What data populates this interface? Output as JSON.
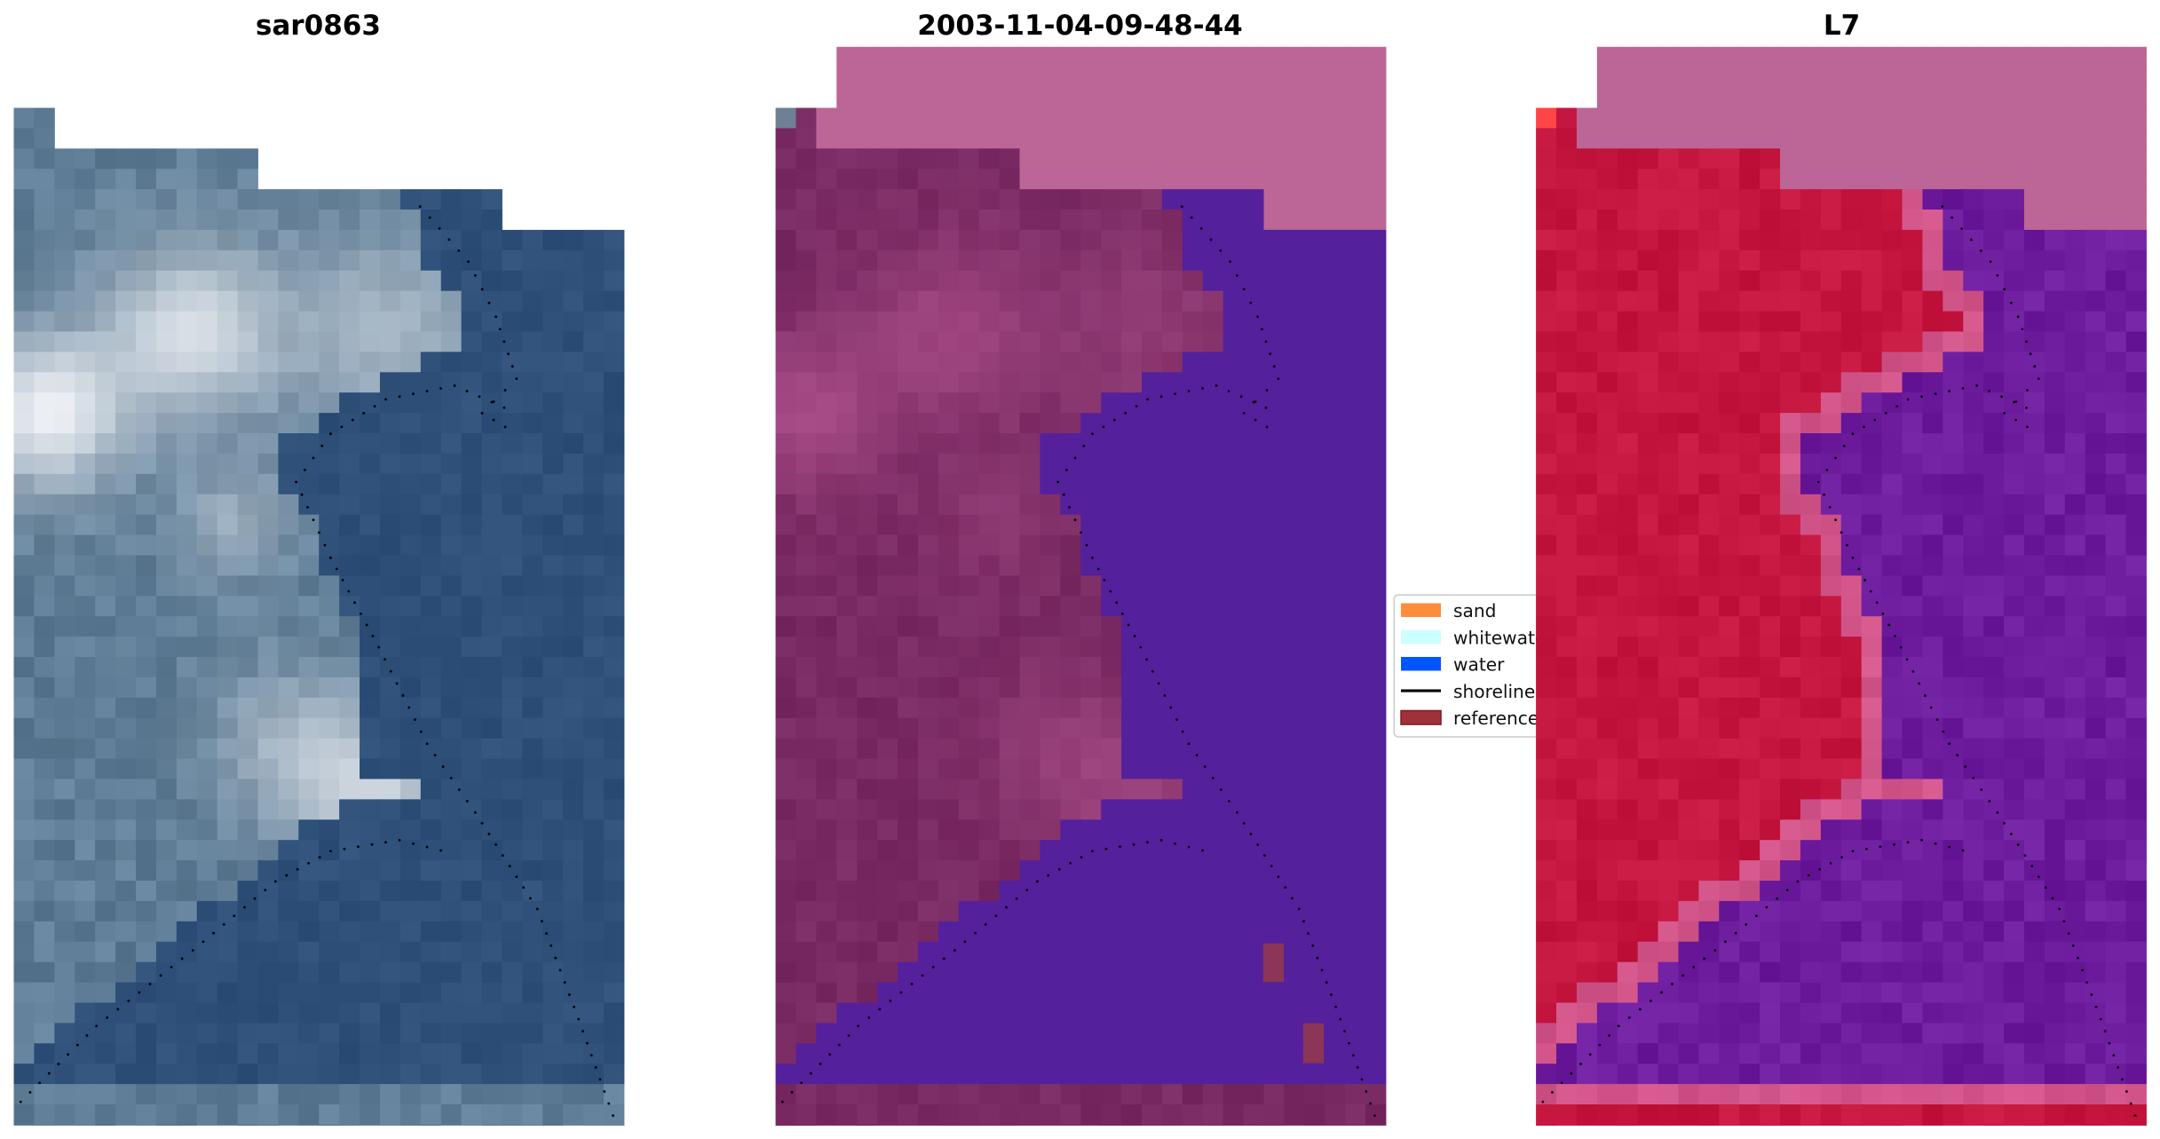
{
  "panels": [
    {
      "title": "sar0863",
      "kind": "rgb"
    },
    {
      "title": "2003-11-04-09-48-44",
      "kind": "classified"
    },
    {
      "title": "L7",
      "kind": "index"
    }
  ],
  "legend": {
    "items": [
      {
        "label": "sand",
        "color": "#ff8c3a",
        "shape": "patch"
      },
      {
        "label": "whitewater",
        "color": "#ccffff",
        "shape": "patch"
      },
      {
        "label": "water",
        "color": "#0055ff",
        "shape": "patch"
      },
      {
        "label": "shoreline",
        "color": "#000000",
        "shape": "line"
      },
      {
        "label": "reference",
        "color": "#a0303a",
        "shape": "patch"
      }
    ]
  },
  "colors": {
    "nodata_overlay": "#bb6696",
    "rgb_water": "#2e5079",
    "rgb_land": "#5f7d96",
    "classified_land": "#7a2a62",
    "classified_water": "#55209c",
    "reference_cells": "#8b3658",
    "index_land": "#c4163f",
    "index_edge": "#d2558a",
    "index_water": "#6e1c9e"
  }
}
